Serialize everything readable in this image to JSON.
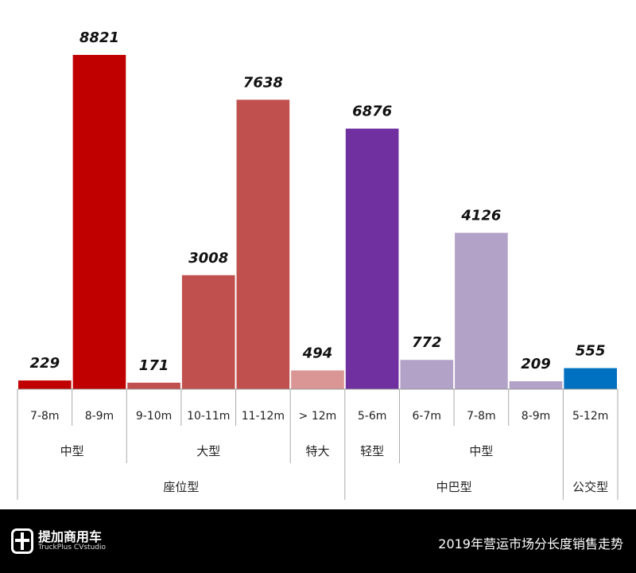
{
  "chart_data": {
    "type": "bar",
    "title": "",
    "categories": [
      "7-8m",
      "8-9m",
      "9-10m",
      "10-11m",
      "11-12m",
      "> 12m",
      "5-6m",
      "6-7m",
      "7-8m",
      "8-9m",
      "5-12m"
    ],
    "values": [
      229,
      8821,
      171,
      3008,
      7638,
      494,
      6876,
      772,
      4126,
      209,
      555
    ],
    "colors": [
      "#C00000",
      "#C00000",
      "#C0504D",
      "#C0504D",
      "#C0504D",
      "#D99694",
      "#7030A0",
      "#B3A2C7",
      "#B3A2C7",
      "#B3A2C7",
      "#0070C0"
    ],
    "subgroups": [
      {
        "label": "中型",
        "span": 2
      },
      {
        "label": "大型",
        "span": 3
      },
      {
        "label": "特大",
        "span": 1
      },
      {
        "label": "轻型",
        "span": 1
      },
      {
        "label": "中型",
        "span": 3
      },
      {
        "label": "",
        "span": 1
      }
    ],
    "groups": [
      {
        "label": "座位型",
        "span": 6
      },
      {
        "label": "中巴型",
        "span": 4
      },
      {
        "label": "公交型",
        "span": 1
      }
    ],
    "ylim": [
      0,
      8821
    ],
    "grid": false,
    "data_labels": true
  },
  "footer": {
    "brand_cn": "提加商用车",
    "brand_en": "TruckPlus CVstudio",
    "title": "2019年营运市场分长度销售走势"
  }
}
